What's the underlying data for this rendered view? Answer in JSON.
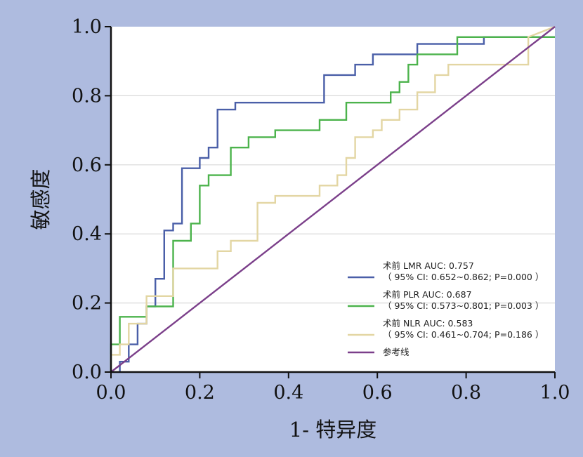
{
  "chart_data": {
    "type": "line",
    "xlabel": "1- 特异度",
    "ylabel": "敏感度",
    "xlim": [
      0,
      1
    ],
    "ylim": [
      0,
      1
    ],
    "x_ticks": [
      "0.0",
      "0.2",
      "0.4",
      "0.6",
      "0.8",
      "1.0"
    ],
    "y_ticks": [
      "0.0",
      "0.2",
      "0.4",
      "0.6",
      "0.8",
      "1.0"
    ],
    "grid": "horizontal",
    "legend_position": "bottom-right",
    "colors": {
      "background": "#aebbdf",
      "plot": "#ffffff",
      "grid": "#d9d9d9"
    },
    "series": [
      {
        "name": "术前 LMR AUC: 0.757",
        "detail": "（ 95% CI: 0.652~0.862; P=0.000 ）",
        "color": "#4a5fa8",
        "x": [
          0.02,
          0.02,
          0.04,
          0.04,
          0.06,
          0.06,
          0.08,
          0.08,
          0.1,
          0.1,
          0.12,
          0.12,
          0.14,
          0.14,
          0.16,
          0.16,
          0.2,
          0.2,
          0.22,
          0.22,
          0.24,
          0.24,
          0.28,
          0.28,
          0.48,
          0.48,
          0.55,
          0.55,
          0.59,
          0.59,
          0.69,
          0.69,
          0.84,
          0.84,
          1.0
        ],
        "y": [
          0.0,
          0.03,
          0.03,
          0.08,
          0.08,
          0.14,
          0.14,
          0.19,
          0.19,
          0.27,
          0.27,
          0.41,
          0.41,
          0.43,
          0.43,
          0.59,
          0.59,
          0.62,
          0.62,
          0.65,
          0.65,
          0.76,
          0.76,
          0.78,
          0.78,
          0.86,
          0.86,
          0.89,
          0.89,
          0.92,
          0.92,
          0.95,
          0.95,
          0.97,
          0.97
        ]
      },
      {
        "name": "术前 PLR AUC: 0.687",
        "detail": "（ 95% CI: 0.573~0.801; P=0.003 ）",
        "color": "#4cb34c",
        "x": [
          0.0,
          0.0,
          0.02,
          0.02,
          0.08,
          0.08,
          0.14,
          0.14,
          0.18,
          0.18,
          0.2,
          0.2,
          0.22,
          0.22,
          0.27,
          0.27,
          0.31,
          0.31,
          0.37,
          0.37,
          0.47,
          0.47,
          0.53,
          0.53,
          0.63,
          0.63,
          0.65,
          0.65,
          0.67,
          0.67,
          0.69,
          0.69,
          0.78,
          0.78,
          0.86,
          0.86,
          1.0
        ],
        "y": [
          0.0,
          0.08,
          0.08,
          0.16,
          0.16,
          0.19,
          0.19,
          0.38,
          0.38,
          0.43,
          0.43,
          0.54,
          0.54,
          0.57,
          0.57,
          0.65,
          0.65,
          0.68,
          0.68,
          0.7,
          0.7,
          0.73,
          0.73,
          0.78,
          0.78,
          0.81,
          0.81,
          0.84,
          0.84,
          0.89,
          0.89,
          0.92,
          0.92,
          0.97,
          0.97,
          0.97,
          0.97
        ]
      },
      {
        "name": "术前 NLR AUC: 0.583",
        "detail": "（ 95% CI: 0.461~0.704; P=0.186 ）",
        "color": "#e3d6a3",
        "x": [
          0.0,
          0.0,
          0.02,
          0.02,
          0.04,
          0.04,
          0.08,
          0.08,
          0.14,
          0.14,
          0.24,
          0.24,
          0.27,
          0.27,
          0.33,
          0.33,
          0.37,
          0.37,
          0.47,
          0.47,
          0.51,
          0.51,
          0.53,
          0.53,
          0.55,
          0.55,
          0.59,
          0.59,
          0.61,
          0.61,
          0.65,
          0.65,
          0.69,
          0.69,
          0.73,
          0.73,
          0.76,
          0.76,
          0.94,
          0.94,
          1.0
        ],
        "y": [
          0.0,
          0.05,
          0.05,
          0.08,
          0.08,
          0.14,
          0.14,
          0.22,
          0.22,
          0.3,
          0.3,
          0.35,
          0.35,
          0.38,
          0.38,
          0.49,
          0.49,
          0.51,
          0.51,
          0.54,
          0.54,
          0.57,
          0.57,
          0.62,
          0.62,
          0.68,
          0.68,
          0.7,
          0.7,
          0.73,
          0.73,
          0.76,
          0.76,
          0.81,
          0.81,
          0.86,
          0.86,
          0.89,
          0.89,
          0.97,
          1.0
        ]
      },
      {
        "name": "参考线",
        "detail": "",
        "color": "#7b3f8a",
        "x": [
          0.0,
          1.0
        ],
        "y": [
          0.0,
          1.0
        ]
      }
    ]
  }
}
